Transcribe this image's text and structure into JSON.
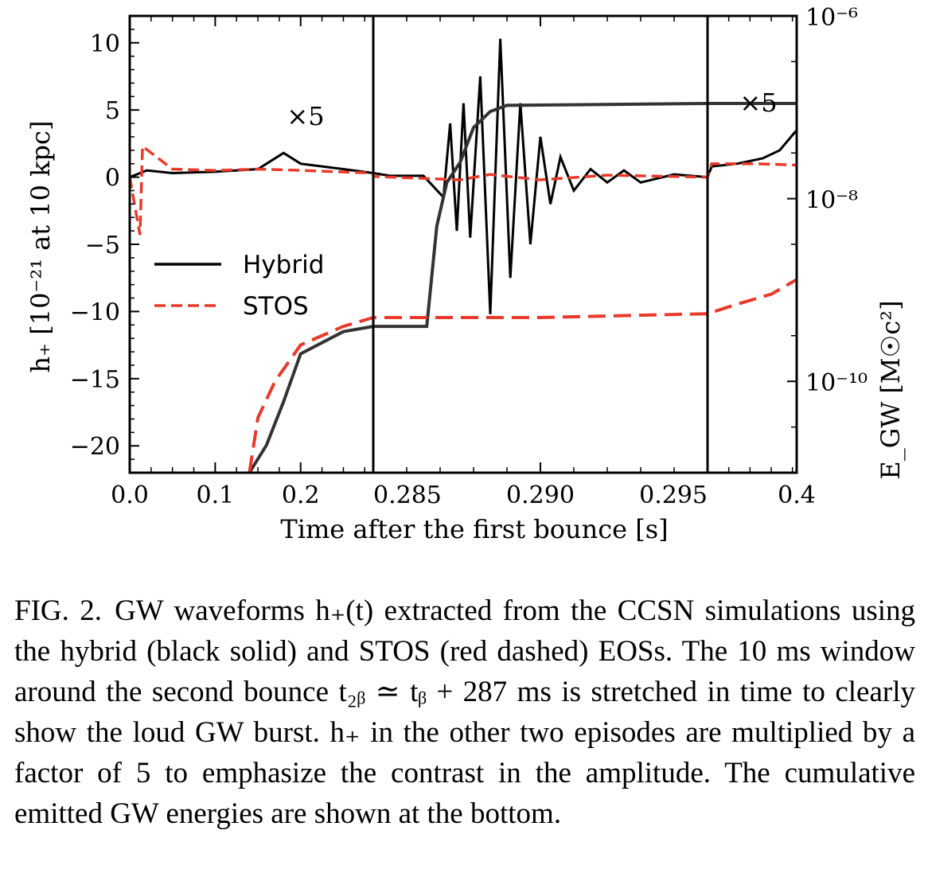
{
  "chart_data": {
    "type": "line",
    "xlabel": "Time after the first bounce [s]",
    "ylabel_left": "h₊ [10⁻²¹ at 10 kpc]",
    "ylabel_right": "E_GW [M☉c²]",
    "ylim_left": [
      -22,
      12
    ],
    "left_ticks": [
      10,
      5,
      0,
      -5,
      -10,
      -15,
      -20
    ],
    "left_tick_labels": [
      "10",
      "5",
      "0",
      "−5",
      "−10",
      "−15",
      "−20"
    ],
    "right_axis_scale": "log",
    "ylim_right": [
      1e-11,
      1e-06
    ],
    "right_ticks": [
      1e-06,
      1e-08,
      1e-10
    ],
    "right_tick_labels": [
      "10⁻⁶",
      "10⁻⁸",
      "10⁻¹⁰"
    ],
    "panels": [
      {
        "xlim": [
          0.0,
          0.285
        ],
        "ticks": [
          0.0,
          0.1,
          0.2
        ],
        "tick_labels": [
          "0.0",
          "0.1",
          "0.2"
        ],
        "annotation": "×5"
      },
      {
        "xlim": [
          0.285,
          0.295
        ],
        "ticks": [
          0.285,
          0.29,
          0.295
        ],
        "tick_labels": [
          "0.285",
          "0.290",
          "0.295"
        ],
        "annotation": ""
      },
      {
        "xlim": [
          0.295,
          0.4
        ],
        "ticks": [
          0.4
        ],
        "tick_labels": [
          "0.4"
        ],
        "annotation": "×5"
      }
    ],
    "series": [
      {
        "name": "Hybrid",
        "color": "#000000",
        "style": "solid",
        "strain_points": [
          [
            0.0,
            0
          ],
          [
            0.02,
            0.5
          ],
          [
            0.05,
            0.3
          ],
          [
            0.1,
            0.4
          ],
          [
            0.15,
            0.6
          ],
          [
            0.18,
            1.8
          ],
          [
            0.2,
            1.0
          ],
          [
            0.25,
            0.6
          ],
          [
            0.285,
            0.3
          ],
          [
            0.2855,
            0.1
          ],
          [
            0.2865,
            0.1
          ],
          [
            0.2871,
            -1.5
          ],
          [
            0.2873,
            4.0
          ],
          [
            0.2875,
            -4.0
          ],
          [
            0.2877,
            5.5
          ],
          [
            0.2879,
            -4.5
          ],
          [
            0.2882,
            7.5
          ],
          [
            0.2885,
            -10.2
          ],
          [
            0.2888,
            10.3
          ],
          [
            0.2891,
            -7.5
          ],
          [
            0.2894,
            5.5
          ],
          [
            0.2897,
            -5.0
          ],
          [
            0.29,
            3.0
          ],
          [
            0.2903,
            -2.0
          ],
          [
            0.2906,
            1.5
          ],
          [
            0.291,
            -1.0
          ],
          [
            0.2915,
            0.6
          ],
          [
            0.292,
            -0.4
          ],
          [
            0.2925,
            0.5
          ],
          [
            0.293,
            -0.4
          ],
          [
            0.294,
            0.2
          ],
          [
            0.295,
            0
          ],
          [
            0.3,
            0.8
          ],
          [
            0.33,
            1.0
          ],
          [
            0.36,
            1.4
          ],
          [
            0.38,
            2.0
          ],
          [
            0.4,
            3.5
          ]
        ],
        "energy_points": [
          [
            0.14,
            1e-11
          ],
          [
            0.16,
            2e-11
          ],
          [
            0.18,
            6e-11
          ],
          [
            0.2,
            2e-10
          ],
          [
            0.25,
            3.5e-10
          ],
          [
            0.285,
            4e-10
          ],
          [
            0.2866,
            4e-10
          ],
          [
            0.2869,
            5e-09
          ],
          [
            0.2872,
            1.5e-08
          ],
          [
            0.2876,
            2.5e-08
          ],
          [
            0.288,
            6e-08
          ],
          [
            0.2885,
            9e-08
          ],
          [
            0.289,
            1.05e-07
          ],
          [
            0.295,
            1.1e-07
          ],
          [
            0.4,
            1.1e-07
          ]
        ]
      },
      {
        "name": "STOS",
        "color": "#e8392a",
        "style": "dashed",
        "strain_points": [
          [
            0.0,
            0
          ],
          [
            0.012,
            -4.3
          ],
          [
            0.015,
            2.3
          ],
          [
            0.05,
            0.6
          ],
          [
            0.1,
            0.5
          ],
          [
            0.15,
            0.6
          ],
          [
            0.2,
            0.5
          ],
          [
            0.285,
            0.3
          ],
          [
            0.285,
            0.05
          ],
          [
            0.2876,
            -0.2
          ],
          [
            0.2885,
            0.2
          ],
          [
            0.29,
            -0.2
          ],
          [
            0.292,
            0.15
          ],
          [
            0.295,
            0
          ],
          [
            0.3,
            1.0
          ],
          [
            0.35,
            1.0
          ],
          [
            0.4,
            0.9
          ]
        ],
        "energy_points": [
          [
            0.14,
            1e-11
          ],
          [
            0.15,
            4e-11
          ],
          [
            0.17,
            1e-10
          ],
          [
            0.2,
            2.5e-10
          ],
          [
            0.25,
            4e-10
          ],
          [
            0.285,
            5e-10
          ],
          [
            0.29,
            5e-10
          ],
          [
            0.295,
            5.5e-10
          ],
          [
            0.33,
            7e-10
          ],
          [
            0.37,
            9e-10
          ],
          [
            0.4,
            1.3e-09
          ]
        ]
      }
    ]
  },
  "caption": {
    "label": "FIG. 2.",
    "text": "GW waveforms h₊(t) extracted from the CCSN simulations using the hybrid (black solid) and STOS (red dashed) EOSs. The 10 ms window around the second bounce t₂ᵦ ≃ tᵦ + 287 ms is stretched in time to clearly show the loud GW burst. h₊ in the other two episodes are multiplied by a factor of 5 to emphasize the contrast in the amplitude. The cumulative emitted GW energies are shown at the bottom."
  }
}
